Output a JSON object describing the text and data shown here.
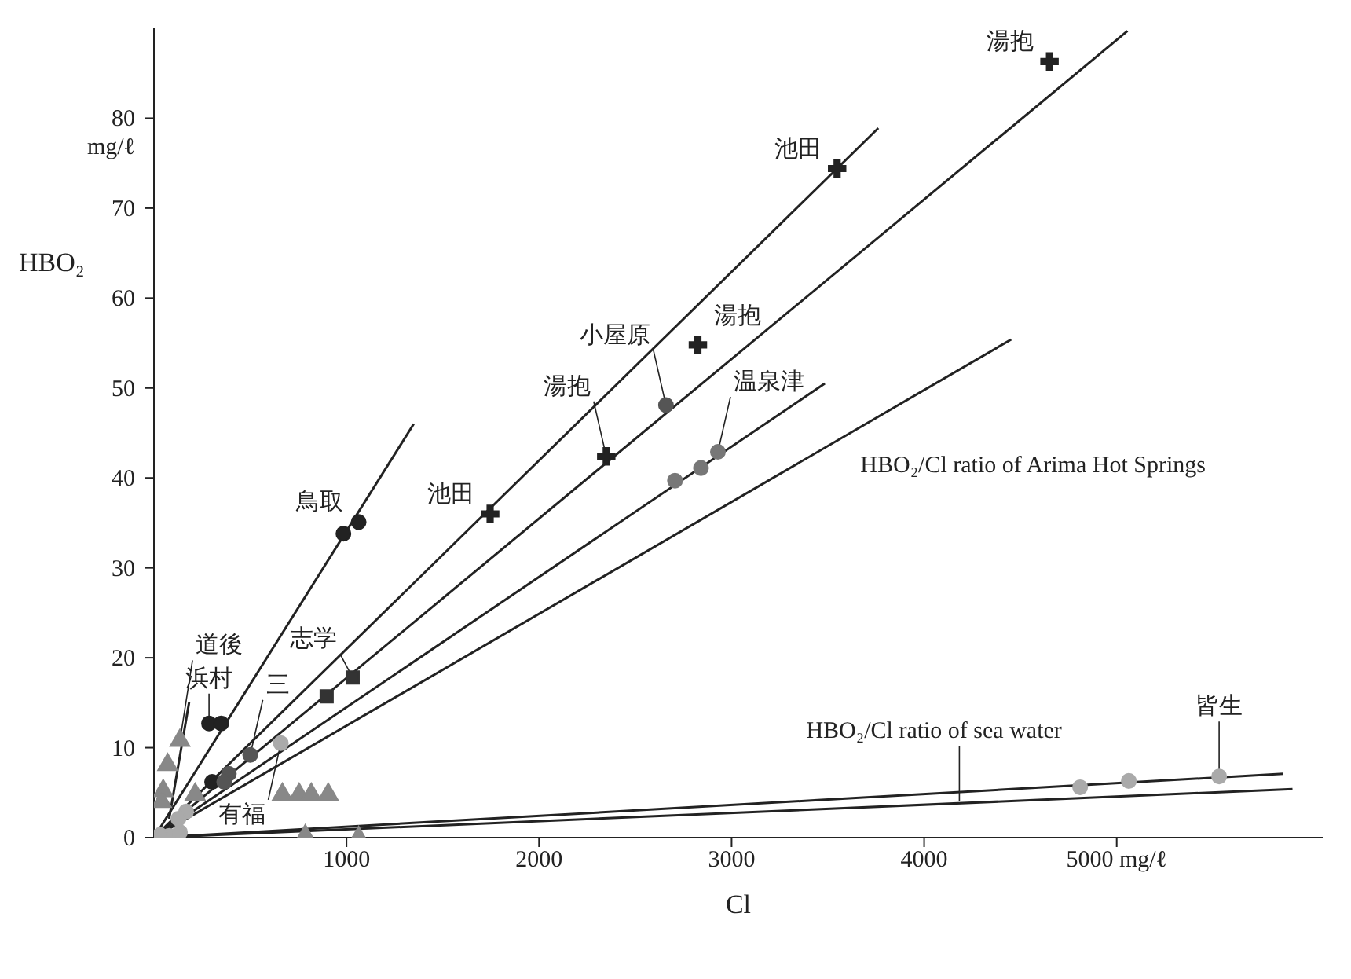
{
  "chart_data": {
    "type": "scatter",
    "xlabel": "Cl",
    "ylabel": "HBO₂",
    "xlim": [
      0,
      6070
    ],
    "ylim": [
      0,
      90
    ],
    "xticks": [
      1000,
      2000,
      3000,
      4000,
      {
        "value": 5000,
        "label": "5000 mg/ℓ"
      }
    ],
    "yticks": [
      0,
      10,
      20,
      30,
      40,
      50,
      60,
      70,
      {
        "value": 80,
        "label": "80 mg/ℓ"
      }
    ],
    "grid": false,
    "legend": false,
    "series": [
      {
        "type": "scatter",
        "marker": "circle",
        "color": "#222222",
        "x": [
          984,
          1063,
          286,
          349,
          302
        ],
        "values": [
          33.8,
          35.1,
          12.7,
          12.7,
          6.2
        ]
      },
      {
        "type": "scatter",
        "marker": "cross",
        "color": "#222222",
        "x": [
          1746,
          3548,
          2349,
          2825,
          4651
        ],
        "values": [
          36.0,
          74.4,
          42.4,
          54.8,
          86.3
        ]
      },
      {
        "type": "scatter",
        "marker": "circle",
        "color": "#555555",
        "x": [
          2659,
          500,
          389,
          365
        ],
        "values": [
          48.1,
          9.2,
          7.1,
          6.2
        ]
      },
      {
        "type": "scatter",
        "marker": "circle",
        "color": "#777777",
        "x": [
          2706,
          2841,
          2929
        ],
        "values": [
          39.7,
          41.1,
          42.9
        ]
      },
      {
        "type": "scatter",
        "marker": "circle",
        "color": "#aaaaaa",
        "x": [
          4810,
          5063,
          5532,
          659,
          167,
          127,
          79,
          32,
          135
        ],
        "values": [
          5.6,
          6.3,
          6.8,
          10.5,
          2.9,
          2.1,
          0.2,
          0.3,
          0.6
        ]
      },
      {
        "type": "scatter",
        "marker": "square",
        "color": "#333333",
        "x": [
          897,
          1032
        ],
        "values": [
          15.7,
          17.8
        ]
      },
      {
        "type": "scatter",
        "marker": "triangle",
        "color": "#888888",
        "x": [
          667,
          754,
          817,
          905,
          135,
          71,
          48,
          40,
          214,
          786,
          1063
        ],
        "values": [
          4.8,
          4.8,
          4.8,
          4.8,
          10.8,
          8.1,
          5.2,
          4.0,
          4.8,
          0.2,
          0
        ]
      },
      {
        "type": "line",
        "color": "#222222",
        "x": [
          0,
          1349
        ],
        "values": [
          0,
          46.0
        ]
      },
      {
        "type": "line",
        "color": "#222222",
        "x": [
          0,
          3762
        ],
        "values": [
          0,
          78.9
        ]
      },
      {
        "type": "line",
        "color": "#222222",
        "x": [
          0,
          5056
        ],
        "values": [
          0,
          89.7
        ]
      },
      {
        "type": "line",
        "color": "#222222",
        "x": [
          0,
          3484
        ],
        "values": [
          0,
          50.5
        ]
      },
      {
        "type": "line",
        "color": "#222222",
        "x": [
          0,
          4452
        ],
        "values": [
          0,
          55.4
        ]
      },
      {
        "type": "line",
        "color": "#222222",
        "x": [
          0,
          5865
        ],
        "values": [
          0,
          7.1
        ]
      },
      {
        "type": "line",
        "color": "#222222",
        "x": [
          0,
          5913
        ],
        "values": [
          0,
          5.4
        ]
      },
      {
        "type": "line",
        "color": "#222222",
        "x": [
          79,
          183
        ],
        "values": [
          2.1,
          15.1
        ]
      }
    ],
    "annotations": [
      {
        "text": "鳥取",
        "x": 1063,
        "y": 35.1
      },
      {
        "text": "池田",
        "x": 1746,
        "y": 36.0
      },
      {
        "text": "池田",
        "x": 3548,
        "y": 74.4
      },
      {
        "text": "湯抱",
        "x": 2349,
        "y": 42.4
      },
      {
        "text": "湯抱",
        "x": 2825,
        "y": 54.8
      },
      {
        "text": "湯抱",
        "x": 4651,
        "y": 86.3
      },
      {
        "text": "小屋原",
        "x": 2659,
        "y": 48.1
      },
      {
        "text": "温泉津",
        "x": 2929,
        "y": 42.9
      },
      {
        "text": "皆生",
        "x": 5532,
        "y": 6.8
      },
      {
        "text": "志学",
        "x": 1032,
        "y": 17.8
      },
      {
        "text": "有福",
        "x": 659,
        "y": 10.5
      },
      {
        "text": "浜村",
        "x": 286,
        "y": 12.7
      },
      {
        "text": "三",
        "x": 500,
        "y": 9.2
      },
      {
        "text": "道後",
        "x": 135,
        "y": 10.8
      },
      {
        "text": "HBO₂/Cl ratio of Arima Hot Springs",
        "x": 3587,
        "y": 43.8
      },
      {
        "text": "HBO₂/Cl ratio of sea water",
        "x": 4183,
        "y": 4.1
      }
    ]
  }
}
